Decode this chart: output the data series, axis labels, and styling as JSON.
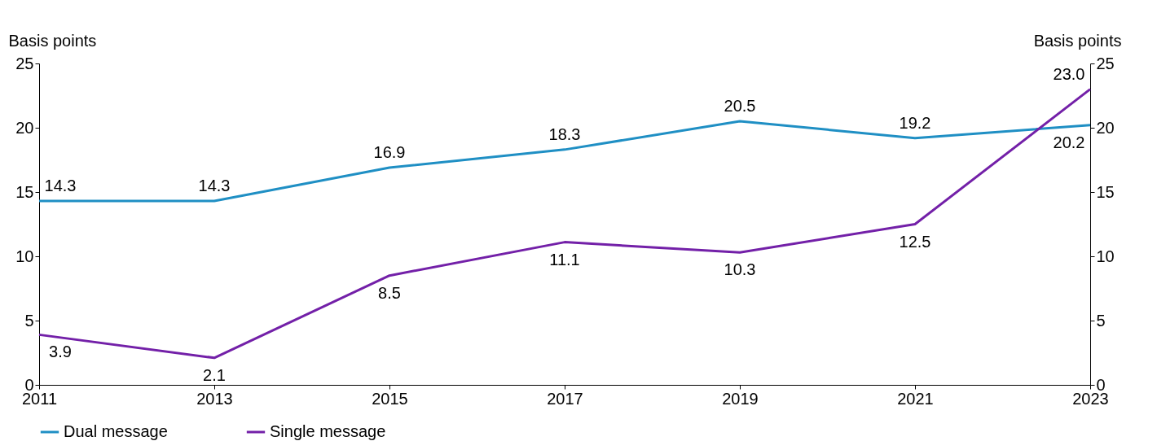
{
  "chart_data": {
    "type": "line",
    "x": [
      2011,
      2013,
      2015,
      2017,
      2019,
      2021,
      2023
    ],
    "series": [
      {
        "name": "Dual message",
        "color": "#1f8fc4",
        "values": [
          14.3,
          14.3,
          16.9,
          18.3,
          20.5,
          19.2,
          20.2
        ],
        "value_labels": [
          "14.3",
          "14.3",
          "16.9",
          "18.3",
          "20.5",
          "19.2",
          "20.2"
        ]
      },
      {
        "name": "Single message",
        "color": "#7320a8",
        "values": [
          3.9,
          2.1,
          8.5,
          11.1,
          10.3,
          12.5,
          23.0
        ],
        "value_labels": [
          "3.9",
          "2.1",
          "8.5",
          "11.1",
          "10.3",
          "12.5",
          "23.0"
        ]
      }
    ],
    "xlim": [
      2011,
      2023
    ],
    "xticks": [
      2011,
      2013,
      2015,
      2017,
      2019,
      2021,
      2023
    ],
    "ylim": [
      0,
      25
    ],
    "yticks": [
      0,
      5,
      10,
      15,
      20,
      25
    ],
    "y2lim": [
      0,
      25
    ],
    "y2ticks": [
      0,
      5,
      10,
      15,
      20,
      25
    ],
    "ylabel": "Basis points",
    "y2label": "Basis points",
    "legend": "bottom",
    "grid": false,
    "marker": "none",
    "line_style": "solid"
  }
}
